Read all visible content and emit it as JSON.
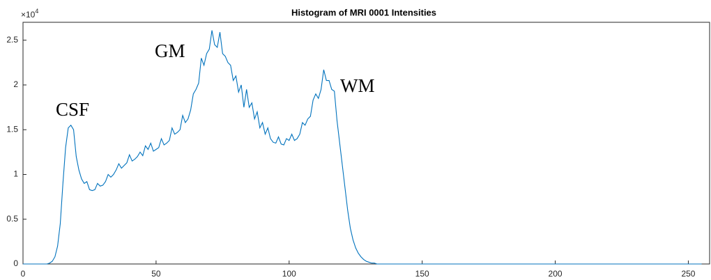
{
  "chart_data": {
    "type": "line",
    "title": "Histogram of MRI 0001 Intensities",
    "y_multiplier": "×10",
    "y_multiplier_exponent": "4",
    "annotations": [
      "CSF",
      "GM",
      "WM"
    ],
    "color": "#0072bd",
    "xlim": [
      0,
      258
    ],
    "xticks": [
      0,
      50,
      100,
      150,
      200,
      250
    ],
    "ylim": [
      0,
      2.7
    ],
    "yticks": [
      0,
      0.5,
      1,
      1.5,
      2,
      2.5
    ],
    "x": [
      0,
      1,
      2,
      3,
      4,
      5,
      6,
      7,
      8,
      9,
      10,
      11,
      12,
      13,
      14,
      15,
      16,
      17,
      18,
      19,
      20,
      21,
      22,
      23,
      24,
      25,
      26,
      27,
      28,
      29,
      30,
      31,
      32,
      33,
      34,
      35,
      36,
      37,
      38,
      39,
      40,
      41,
      42,
      43,
      44,
      45,
      46,
      47,
      48,
      49,
      50,
      51,
      52,
      53,
      54,
      55,
      56,
      57,
      58,
      59,
      60,
      61,
      62,
      63,
      64,
      65,
      66,
      67,
      68,
      69,
      70,
      71,
      72,
      73,
      74,
      75,
      76,
      77,
      78,
      79,
      80,
      81,
      82,
      83,
      84,
      85,
      86,
      87,
      88,
      89,
      90,
      91,
      92,
      93,
      94,
      95,
      96,
      97,
      98,
      99,
      100,
      101,
      102,
      103,
      104,
      105,
      106,
      107,
      108,
      109,
      110,
      111,
      112,
      113,
      114,
      115,
      116,
      117,
      118,
      119,
      120,
      121,
      122,
      123,
      124,
      125,
      126,
      127,
      128,
      129,
      130,
      131,
      132,
      133,
      134,
      135,
      136,
      137,
      138,
      139,
      140,
      141,
      142,
      143,
      144,
      145,
      146,
      147,
      148,
      149,
      150,
      151,
      152,
      153,
      154,
      155,
      156,
      157,
      158,
      159,
      160,
      161,
      162,
      163,
      164,
      165,
      166,
      167,
      168,
      169,
      170,
      171,
      172,
      173,
      174,
      175,
      176,
      177,
      178,
      179,
      180,
      181,
      182,
      183,
      184,
      185,
      186,
      187,
      188,
      189,
      190,
      191,
      192,
      193,
      194,
      195,
      196,
      197,
      198,
      199,
      200,
      201,
      202,
      203,
      204,
      205,
      206,
      207,
      208,
      209,
      210,
      211,
      212,
      213,
      214,
      215,
      216,
      217,
      218,
      219,
      220,
      221,
      222,
      223,
      224,
      225,
      226,
      227,
      228,
      229,
      230,
      231,
      232,
      233,
      234,
      235,
      236,
      237,
      238,
      239,
      240,
      241,
      242,
      243,
      244,
      245,
      246,
      247,
      248,
      249,
      250,
      251,
      252,
      253,
      254,
      255
    ],
    "values": [
      0,
      0,
      0,
      0,
      0,
      0,
      0,
      0,
      0,
      0,
      0.01,
      0.03,
      0.08,
      0.2,
      0.45,
      0.9,
      1.3,
      1.52,
      1.55,
      1.5,
      1.2,
      1.05,
      0.95,
      0.9,
      0.92,
      0.83,
      0.82,
      0.83,
      0.9,
      0.87,
      0.88,
      0.92,
      1.0,
      0.97,
      1.0,
      1.05,
      1.12,
      1.07,
      1.1,
      1.13,
      1.22,
      1.15,
      1.17,
      1.2,
      1.25,
      1.21,
      1.32,
      1.28,
      1.35,
      1.26,
      1.28,
      1.3,
      1.4,
      1.33,
      1.35,
      1.38,
      1.52,
      1.45,
      1.47,
      1.5,
      1.66,
      1.58,
      1.62,
      1.72,
      1.9,
      1.95,
      2.02,
      2.3,
      2.22,
      2.35,
      2.4,
      2.61,
      2.45,
      2.42,
      2.59,
      2.35,
      2.32,
      2.25,
      2.22,
      2.05,
      2.1,
      1.92,
      2.0,
      1.75,
      1.95,
      1.75,
      1.8,
      1.62,
      1.7,
      1.52,
      1.58,
      1.45,
      1.52,
      1.4,
      1.36,
      1.35,
      1.42,
      1.34,
      1.33,
      1.4,
      1.38,
      1.45,
      1.38,
      1.4,
      1.45,
      1.58,
      1.55,
      1.62,
      1.65,
      1.83,
      1.9,
      1.85,
      1.95,
      2.17,
      2.05,
      2.05,
      1.95,
      1.93,
      1.6,
      1.35,
      1.1,
      0.85,
      0.6,
      0.4,
      0.27,
      0.18,
      0.12,
      0.08,
      0.05,
      0.03,
      0.02,
      0.01,
      0.01,
      0,
      0,
      0,
      0,
      0,
      0,
      0,
      0,
      0,
      0,
      0,
      0,
      0,
      0,
      0,
      0,
      0,
      0,
      0,
      0,
      0,
      0,
      0,
      0,
      0,
      0,
      0,
      0,
      0,
      0,
      0,
      0,
      0,
      0,
      0,
      0,
      0,
      0,
      0,
      0,
      0,
      0,
      0,
      0,
      0,
      0,
      0,
      0,
      0,
      0,
      0,
      0,
      0,
      0,
      0,
      0,
      0,
      0,
      0,
      0,
      0,
      0,
      0,
      0,
      0,
      0,
      0,
      0,
      0,
      0,
      0,
      0,
      0,
      0,
      0,
      0,
      0,
      0,
      0,
      0,
      0,
      0,
      0,
      0,
      0,
      0,
      0,
      0,
      0,
      0,
      0,
      0,
      0,
      0,
      0,
      0,
      0,
      0,
      0,
      0,
      0,
      0,
      0,
      0,
      0,
      0,
      0,
      0,
      0,
      0,
      0,
      0,
      0,
      0,
      0,
      0,
      0,
      0,
      0,
      0,
      0,
      0,
      0
    ]
  }
}
